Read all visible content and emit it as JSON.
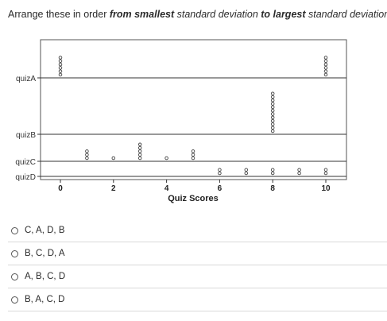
{
  "question": {
    "p1": "Arrange these in order ",
    "p2": "from smallest",
    "p3": " standard deviation ",
    "p4": "to largest",
    "p5": " standard deviation:"
  },
  "chart_data": {
    "type": "dot-plot",
    "xlabel": "Quiz Scores",
    "xticks": [
      0,
      2,
      4,
      6,
      8,
      10
    ],
    "xlim": [
      -0.6,
      10.8
    ],
    "series": [
      {
        "name": "quizA",
        "points": [
          {
            "x": 0,
            "count": 6
          },
          {
            "x": 10,
            "count": 6
          }
        ]
      },
      {
        "name": "quizB",
        "points": [
          {
            "x": 8,
            "count": 12
          }
        ]
      },
      {
        "name": "quizC",
        "points": [
          {
            "x": 1,
            "count": 3
          },
          {
            "x": 2,
            "count": 1
          },
          {
            "x": 3,
            "count": 5
          },
          {
            "x": 4,
            "count": 1
          },
          {
            "x": 5,
            "count": 3
          }
        ]
      },
      {
        "name": "quizD",
        "points": [
          {
            "x": 6,
            "count": 2
          },
          {
            "x": 7,
            "count": 2
          },
          {
            "x": 8,
            "count": 2
          },
          {
            "x": 9,
            "count": 2
          },
          {
            "x": 10,
            "count": 2
          }
        ]
      }
    ]
  },
  "choices": [
    "C, A, D, B",
    "B, C, D, A",
    "A, B, C, D",
    "B, A, C, D"
  ]
}
